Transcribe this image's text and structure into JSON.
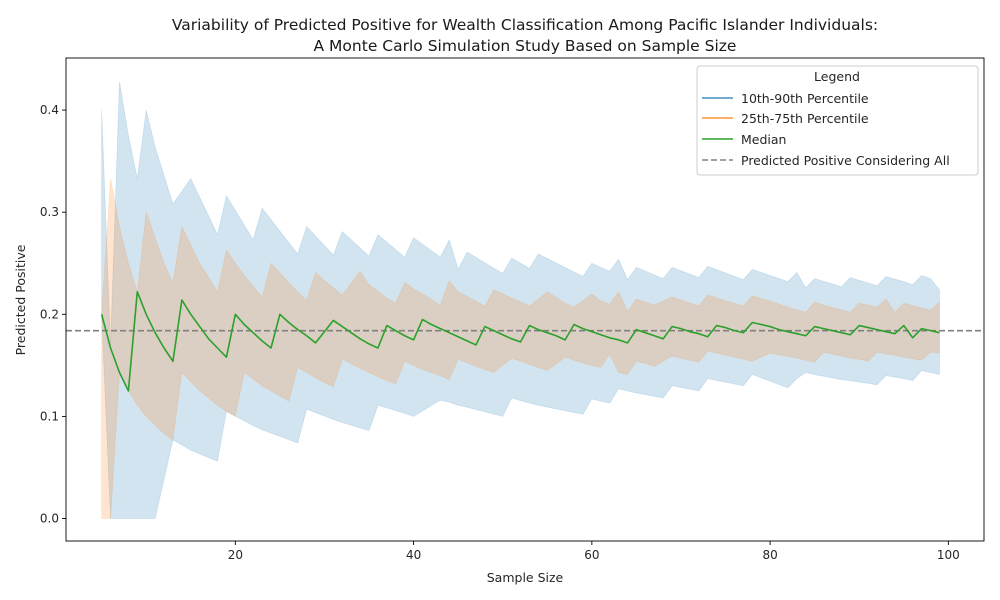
{
  "chart_data": {
    "type": "area",
    "title_line1": "Variability of Predicted Positive for Wealth Classification Among Pacific Islander Individuals:",
    "title_line2": "A Monte Carlo Simulation Study Based on Sample Size",
    "xlabel": "Sample Size",
    "ylabel": "Predicted Positive",
    "xlim": [
      1,
      104
    ],
    "ylim": [
      -0.022,
      0.451
    ],
    "xticks": [
      20,
      40,
      60,
      80,
      100
    ],
    "yticks": [
      0.0,
      0.1,
      0.2,
      0.3,
      0.4
    ],
    "grid": false,
    "legend_title": "Legend",
    "legend_placement": "top-right",
    "reference_value": 0.184,
    "colors": {
      "p10_90": "#1f77b4",
      "p25_75": "#ff7f0e",
      "median": "#2ca02c",
      "reference": "#808080"
    },
    "series": [
      {
        "name": "10th-90th Percentile",
        "kind": "band",
        "x": [
          5,
          6,
          7,
          8,
          9,
          10,
          11,
          13,
          15,
          18,
          19,
          22,
          23,
          27,
          28,
          31,
          32,
          35,
          36,
          39,
          40,
          43,
          44,
          45,
          46,
          50,
          51,
          53,
          54,
          59,
          60,
          62,
          63,
          64,
          65,
          68,
          69,
          72,
          73,
          77,
          78,
          82,
          83,
          84,
          85,
          88,
          89,
          92,
          93,
          95,
          96,
          97,
          98,
          99
        ],
        "upper": [
          0.4,
          0.17,
          0.428,
          0.375,
          0.333,
          0.4,
          0.364,
          0.308,
          0.333,
          0.278,
          0.316,
          0.273,
          0.304,
          0.259,
          0.286,
          0.258,
          0.281,
          0.257,
          0.278,
          0.256,
          0.275,
          0.256,
          0.273,
          0.244,
          0.261,
          0.24,
          0.255,
          0.245,
          0.259,
          0.237,
          0.25,
          0.242,
          0.254,
          0.234,
          0.246,
          0.235,
          0.246,
          0.236,
          0.247,
          0.234,
          0.244,
          0.232,
          0.241,
          0.226,
          0.235,
          0.227,
          0.236,
          0.228,
          0.237,
          0.232,
          0.229,
          0.238,
          0.235,
          0.224
        ],
        "lower": [
          0.2,
          0.0,
          0.0,
          0.0,
          0.0,
          0.0,
          0.0,
          0.077,
          0.067,
          0.056,
          0.105,
          0.091,
          0.087,
          0.074,
          0.107,
          0.097,
          0.094,
          0.086,
          0.111,
          0.103,
          0.1,
          0.116,
          0.114,
          0.111,
          0.109,
          0.1,
          0.118,
          0.113,
          0.111,
          0.102,
          0.117,
          0.113,
          0.127,
          0.125,
          0.123,
          0.118,
          0.13,
          0.125,
          0.137,
          0.13,
          0.141,
          0.128,
          0.137,
          0.143,
          0.141,
          0.136,
          0.135,
          0.131,
          0.14,
          0.137,
          0.135,
          0.145,
          0.143,
          0.141
        ]
      },
      {
        "name": "25th-75th Percentile",
        "kind": "band",
        "x": [
          5,
          6,
          7,
          8,
          9,
          10,
          12,
          13,
          14,
          16,
          18,
          19,
          20,
          21,
          23,
          24,
          26,
          27,
          28,
          29,
          30,
          31,
          32,
          34,
          35,
          37,
          38,
          39,
          40,
          41,
          43,
          44,
          45,
          47,
          48,
          49,
          51,
          52,
          53,
          55,
          57,
          58,
          60,
          61,
          62,
          63,
          64,
          65,
          66,
          67,
          69,
          70,
          72,
          73,
          74,
          77,
          78,
          80,
          81,
          82,
          84,
          85,
          86,
          89,
          90,
          91,
          92,
          93,
          94,
          95,
          97,
          98,
          99
        ],
        "upper": [
          0.2,
          0.333,
          0.286,
          0.25,
          0.222,
          0.3,
          0.25,
          0.231,
          0.286,
          0.25,
          0.222,
          0.263,
          0.25,
          0.238,
          0.217,
          0.25,
          0.231,
          0.222,
          0.214,
          0.241,
          0.233,
          0.226,
          0.219,
          0.242,
          0.229,
          0.216,
          0.211,
          0.231,
          0.225,
          0.22,
          0.209,
          0.233,
          0.222,
          0.213,
          0.208,
          0.224,
          0.216,
          0.212,
          0.208,
          0.222,
          0.211,
          0.207,
          0.22,
          0.213,
          0.21,
          0.222,
          0.203,
          0.215,
          0.212,
          0.209,
          0.217,
          0.214,
          0.208,
          0.219,
          0.216,
          0.208,
          0.218,
          0.213,
          0.21,
          0.207,
          0.202,
          0.212,
          0.209,
          0.202,
          0.211,
          0.209,
          0.207,
          0.215,
          0.202,
          0.211,
          0.206,
          0.204,
          0.212
        ],
        "lower": [
          0.0,
          0.0,
          0.143,
          0.125,
          0.111,
          0.1,
          0.083,
          0.077,
          0.143,
          0.125,
          0.111,
          0.105,
          0.1,
          0.143,
          0.13,
          0.125,
          0.115,
          0.148,
          0.143,
          0.138,
          0.133,
          0.129,
          0.156,
          0.147,
          0.143,
          0.135,
          0.132,
          0.154,
          0.15,
          0.146,
          0.14,
          0.136,
          0.156,
          0.149,
          0.146,
          0.143,
          0.157,
          0.154,
          0.151,
          0.145,
          0.158,
          0.155,
          0.15,
          0.148,
          0.161,
          0.143,
          0.141,
          0.154,
          0.152,
          0.149,
          0.159,
          0.157,
          0.153,
          0.164,
          0.162,
          0.156,
          0.154,
          0.162,
          0.16,
          0.159,
          0.155,
          0.153,
          0.163,
          0.157,
          0.156,
          0.154,
          0.163,
          0.161,
          0.16,
          0.158,
          0.155,
          0.163,
          0.162
        ]
      },
      {
        "name": "Median",
        "kind": "line",
        "x": [
          5,
          6,
          7,
          8,
          9,
          10,
          11,
          12,
          13,
          14,
          15,
          16,
          17,
          18,
          19,
          20,
          21,
          22,
          23,
          24,
          25,
          26,
          27,
          28,
          29,
          30,
          31,
          32,
          33,
          34,
          35,
          36,
          37,
          38,
          39,
          40,
          41,
          42,
          43,
          44,
          45,
          46,
          47,
          48,
          49,
          50,
          51,
          52,
          53,
          54,
          55,
          56,
          57,
          58,
          59,
          60,
          61,
          62,
          63,
          64,
          65,
          66,
          67,
          68,
          69,
          70,
          71,
          72,
          73,
          74,
          75,
          76,
          77,
          78,
          79,
          80,
          81,
          82,
          83,
          84,
          85,
          86,
          87,
          88,
          89,
          90,
          91,
          92,
          93,
          94,
          95,
          96,
          97,
          98,
          99
        ],
        "values": [
          0.2,
          0.167,
          0.143,
          0.125,
          0.222,
          0.2,
          0.182,
          0.167,
          0.154,
          0.214,
          0.2,
          0.188,
          0.176,
          0.167,
          0.158,
          0.2,
          0.19,
          0.182,
          0.174,
          0.167,
          0.2,
          0.192,
          0.185,
          0.179,
          0.172,
          0.183,
          0.194,
          0.188,
          0.182,
          0.176,
          0.171,
          0.167,
          0.189,
          0.184,
          0.179,
          0.175,
          0.195,
          0.19,
          0.186,
          0.182,
          0.178,
          0.174,
          0.17,
          0.188,
          0.184,
          0.18,
          0.176,
          0.173,
          0.189,
          0.185,
          0.182,
          0.179,
          0.175,
          0.19,
          0.186,
          0.183,
          0.18,
          0.177,
          0.175,
          0.172,
          0.185,
          0.182,
          0.179,
          0.176,
          0.188,
          0.186,
          0.183,
          0.181,
          0.178,
          0.189,
          0.187,
          0.184,
          0.182,
          0.192,
          0.19,
          0.188,
          0.185,
          0.183,
          0.181,
          0.179,
          0.188,
          0.186,
          0.184,
          0.182,
          0.18,
          0.189,
          0.187,
          0.185,
          0.183,
          0.181,
          0.189,
          0.177,
          0.186,
          0.184,
          0.182
        ]
      },
      {
        "name": "Predicted Positive Considering All",
        "kind": "hline",
        "value": 0.184
      }
    ]
  }
}
